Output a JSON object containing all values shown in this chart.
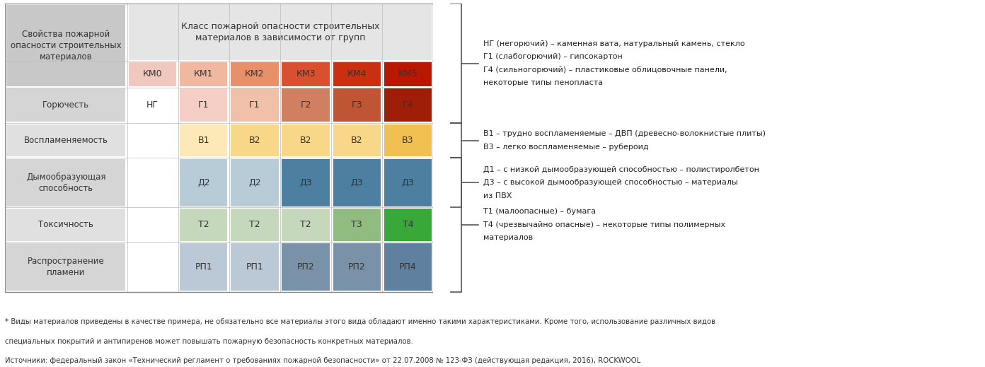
{
  "bg_color": "#ffffff",
  "left_header": "Свойства пожарной\nопасности строительных\nматериалов",
  "title_text": "Класс пожарной опасности строительных\nматериалов в зависимости от групп",
  "km_headers": [
    "КМ0",
    "КМ1",
    "КМ2",
    "КМ3",
    "КМ4",
    "КМ5"
  ],
  "km_colors": [
    "#f0c8be",
    "#f0b8a0",
    "#e8906a",
    "#d85030",
    "#c83010",
    "#b81800"
  ],
  "row_labels": [
    "Горючесть",
    "Воспламеняемость",
    "Дымообразующая\nспособность",
    "Токсичность",
    "Распространение\nпламени"
  ],
  "cells": [
    [
      "НГ",
      "Г1",
      "Г1",
      "Г2",
      "Г3",
      "Г4"
    ],
    [
      "",
      "В1",
      "В2",
      "В2",
      "В2",
      "В3"
    ],
    [
      "",
      "Д2",
      "Д2",
      "Д3",
      "Д3",
      "Д3"
    ],
    [
      "",
      "Т2",
      "Т2",
      "Т2",
      "Т3",
      "Т4"
    ],
    [
      "",
      "РП1",
      "РП1",
      "РП2",
      "РП2",
      "РП4"
    ]
  ],
  "cell_colors": [
    [
      "#ffffff",
      "#f5cfc5",
      "#f0c0a8",
      "#d08060",
      "#c05535",
      "#9e1e08"
    ],
    [
      "#ffffff",
      "#fde9b8",
      "#f8d888",
      "#f8d888",
      "#f8d888",
      "#f0c050"
    ],
    [
      "#ffffff",
      "#b8ccd8",
      "#b8ccd8",
      "#4d7fa0",
      "#4d7fa0",
      "#4d7fa0"
    ],
    [
      "#ffffff",
      "#c5d8bc",
      "#c5d8bc",
      "#c5d8bc",
      "#90bc80",
      "#38a838"
    ],
    [
      "#ffffff",
      "#bbc8d5",
      "#bbc8d5",
      "#7a92a8",
      "#7a92a8",
      "#6080a0"
    ]
  ],
  "left_col_color": "#c8c8c8",
  "title_bg": "#e5e5e5",
  "grid_color": "#bbbbbb",
  "ann_bracket_color": "#555555",
  "ann_groups": [
    {
      "lines": [
        "НГ (негорючий) – каменная вата, натуральный камень, стекло",
        "Г1 (слабогорючий) – гипсокартон",
        "Г4 (сильногорючий) – пластиковые облицовочные панели,",
        "некоторые типы пенопласта"
      ]
    },
    {
      "lines": [
        "В1 – трудно воспламеняемые – ДВП (древесно-волокнистые плиты)",
        "В3 – легко воспламеняемые – рубероид"
      ]
    },
    {
      "lines": [
        "Д1 – с низкой дымообразующей способностью – полистиролбетон",
        "Д3 – с высокой дымообразующей способностью – материалы",
        "из ПВХ"
      ]
    },
    {
      "lines": [
        "Т1 (малоопасные) – бумага",
        "Т4 (чрезвычайно опасные) – некоторые типы полимерных",
        "материалов"
      ]
    }
  ],
  "footnote1": "* Виды материалов приведены в качестве примера, не обязательно все материалы этого вида обладают именно такими характеристиками. Кроме того, использование различных видов",
  "footnote2": "специальных покрытий и антипиренов может повышать пожарную безопасность конкретных материалов.",
  "footnote3": "Источники: федеральный закон «Технический регламент о требованиях пожарной безопасности» от 22.07.2008 № 123-ФЗ (действующая редакция, 2016), ROCKWOOL"
}
